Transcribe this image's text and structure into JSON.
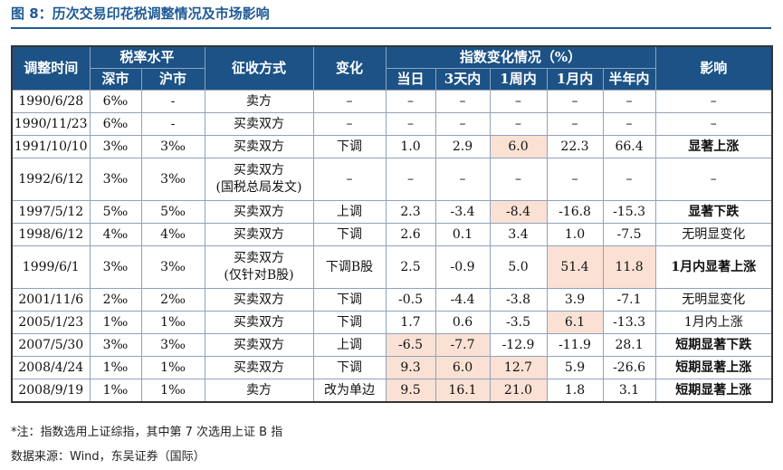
{
  "header": {
    "title": "图 8：历次交易印花税调整情况及市场影响"
  },
  "table": {
    "head_row1": [
      "调整时间",
      "税率水平",
      "征收方式",
      "变化",
      "指数变化情况（%）",
      "影响"
    ],
    "head_row2": [
      "深市",
      "沪市",
      "当日",
      "3天内",
      "1周内",
      "1月内",
      "半年内"
    ],
    "rows": [
      [
        "1990/6/28",
        "6‰",
        "-",
        "卖方",
        "–",
        "–",
        "–",
        "–",
        "–",
        "–",
        "–"
      ],
      [
        "1990/11/23",
        "6‰",
        "-",
        "买卖双方",
        "–",
        "–",
        "–",
        "–",
        "–",
        "–",
        "–"
      ],
      [
        "1991/10/10",
        "3‰",
        "3‰",
        "买卖双方",
        "下调",
        "1.0",
        "2.9",
        "6.0",
        "22.3",
        "66.4",
        "显著上涨"
      ],
      [
        "1992/6/12",
        "3‰",
        "3‰",
        "买卖双方\n(国税总局发文)",
        "–",
        "–",
        "–",
        "–",
        "–",
        "–",
        "–"
      ],
      [
        "1997/5/12",
        "5‰",
        "5‰",
        "买卖双方",
        "上调",
        "2.3",
        "-3.4",
        "-8.4",
        "-16.8",
        "-15.3",
        "显著下跌"
      ],
      [
        "1998/6/12",
        "4‰",
        "4‰",
        "买卖双方",
        "下调",
        "2.6",
        "0.1",
        "3.4",
        "1.0",
        "-7.5",
        "无明显变化"
      ],
      [
        "1999/6/1",
        "3‰",
        "3‰",
        "买卖双方\n(仅针对B股)",
        "下调B股",
        "2.5",
        "-0.9",
        "5.0",
        "51.4",
        "11.8",
        "1月内显著上涨"
      ],
      [
        "2001/11/6",
        "2‰",
        "2‰",
        "买卖双方",
        "下调",
        "-0.5",
        "-4.4",
        "-3.8",
        "3.9",
        "-7.1",
        "无明显变化"
      ],
      [
        "2005/1/23",
        "1‰",
        "1‰",
        "买卖双方",
        "下调",
        "1.7",
        "0.6",
        "-3.5",
        "6.1",
        "-13.3",
        "1月内上涨"
      ],
      [
        "2007/5/30",
        "3‰",
        "3‰",
        "买卖双方",
        "上调",
        "-6.5",
        "-7.7",
        "-12.9",
        "-11.9",
        "28.1",
        "短期显著下跌"
      ],
      [
        "2008/4/24",
        "1‰",
        "1‰",
        "买卖双方",
        "下调",
        "9.3",
        "6.0",
        "12.7",
        "5.9",
        "-26.6",
        "短期显著上涨"
      ],
      [
        "2008/9/19",
        "1‰",
        "1‰",
        "卖方",
        "改为单边",
        "9.5",
        "16.1",
        "21.0",
        "1.8",
        "3.1",
        "短期显著上涨"
      ]
    ]
  },
  "notes": [
    "*注：指数选用上证综指，其中第 7 次选用上证 B 指",
    "数据来源：Wind，东吴证券（国际）"
  ]
}
